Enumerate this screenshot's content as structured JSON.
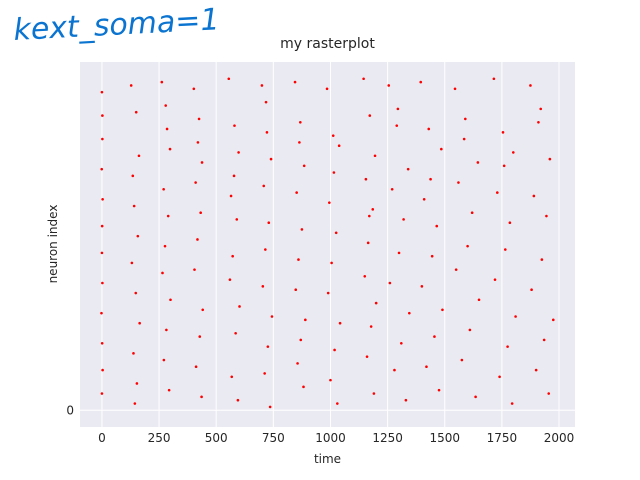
{
  "chart_data": {
    "type": "scatter",
    "title": "my rasterplot",
    "xlabel": "time",
    "ylabel": "neuron index",
    "annotation": "kext_soma=1",
    "color": "#ff0000",
    "background": "#eaeaf2",
    "grid": true,
    "xlim": [
      -96,
      2070
    ],
    "ylim": [
      -5,
      104
    ],
    "xticks": [
      0,
      250,
      500,
      750,
      1000,
      1250,
      1500,
      1750,
      2000
    ],
    "yticks": [
      0
    ],
    "x": [
      0,
      2,
      -1,
      3,
      1,
      0,
      2,
      -2,
      1,
      3,
      0,
      2,
      128,
      150,
      162,
      135,
      141,
      157,
      131,
      148,
      165,
      138,
      153,
      144,
      262,
      285,
      298,
      270,
      290,
      276,
      265,
      300,
      282,
      271,
      294,
      279,
      402,
      425,
      438,
      410,
      432,
      418,
      405,
      441,
      428,
      412,
      436,
      420,
      555,
      580,
      598,
      565,
      590,
      572,
      560,
      602,
      585,
      568,
      595,
      578,
      700,
      722,
      740,
      708,
      730,
      715,
      704,
      744,
      726,
      712,
      736,
      718,
      845,
      868,
      885,
      852,
      875,
      860,
      848,
      890,
      870,
      856,
      882,
      864,
      985,
      1012,
      1038,
      995,
      1025,
      1005,
      990,
      1042,
      1018,
      1000,
      1030,
      1015,
      1145,
      1172,
      1195,
      1155,
      1185,
      1165,
      1150,
      1200,
      1178,
      1160,
      1190,
      1170,
      1255,
      1290,
      1340,
      1270,
      1320,
      1300,
      1260,
      1345,
      1310,
      1280,
      1330,
      1295,
      1395,
      1430,
      1485,
      1410,
      1465,
      1445,
      1400,
      1490,
      1455,
      1420,
      1475,
      1438,
      1545,
      1590,
      1645,
      1560,
      1620,
      1600,
      1550,
      1650,
      1610,
      1575,
      1635,
      1585,
      1715,
      1755,
      1800,
      1730,
      1785,
      1765,
      1720,
      1810,
      1775,
      1740,
      1795,
      1760,
      1875,
      1910,
      1960,
      1890,
      1945,
      1925,
      1880,
      1975,
      1935,
      1900,
      1955,
      1920
    ],
    "y": [
      95,
      81,
      72,
      63,
      55,
      47,
      38,
      29,
      20,
      12,
      5,
      88,
      97,
      89,
      76,
      70,
      61,
      52,
      44,
      35,
      26,
      17,
      8,
      2,
      98,
      84,
      78,
      66,
      58,
      49,
      41,
      33,
      24,
      15,
      6,
      91,
      96,
      87,
      74,
      68,
      59,
      51,
      42,
      30,
      22,
      13,
      4,
      80,
      99,
      85,
      77,
      64,
      57,
      46,
      39,
      31,
      23,
      10,
      3,
      70,
      97,
      83,
      75,
      67,
      56,
      48,
      37,
      28,
      19,
      11,
      1,
      92,
      98,
      86,
      73,
      65,
      54,
      45,
      36,
      27,
      21,
      14,
      7,
      80,
      96,
      82,
      79,
      62,
      53,
      44,
      35,
      26,
      18,
      9,
      2,
      71,
      99,
      88,
      76,
      69,
      60,
      50,
      40,
      32,
      25,
      16,
      5,
      58,
      97,
      85,
      72,
      66,
      57,
      47,
      38,
      29,
      20,
      12,
      3,
      90,
      98,
      84,
      78,
      63,
      55,
      46,
      37,
      30,
      22,
      13,
      6,
      69,
      96,
      87,
      74,
      68,
      59,
      49,
      42,
      33,
      24,
      15,
      4,
      81,
      99,
      83,
      77,
      65,
      56,
      48,
      39,
      28,
      19,
      10,
      2,
      73,
      97,
      86,
      75,
      64,
      58,
      45,
      36,
      27,
      21,
      12,
      5,
      90
    ]
  }
}
